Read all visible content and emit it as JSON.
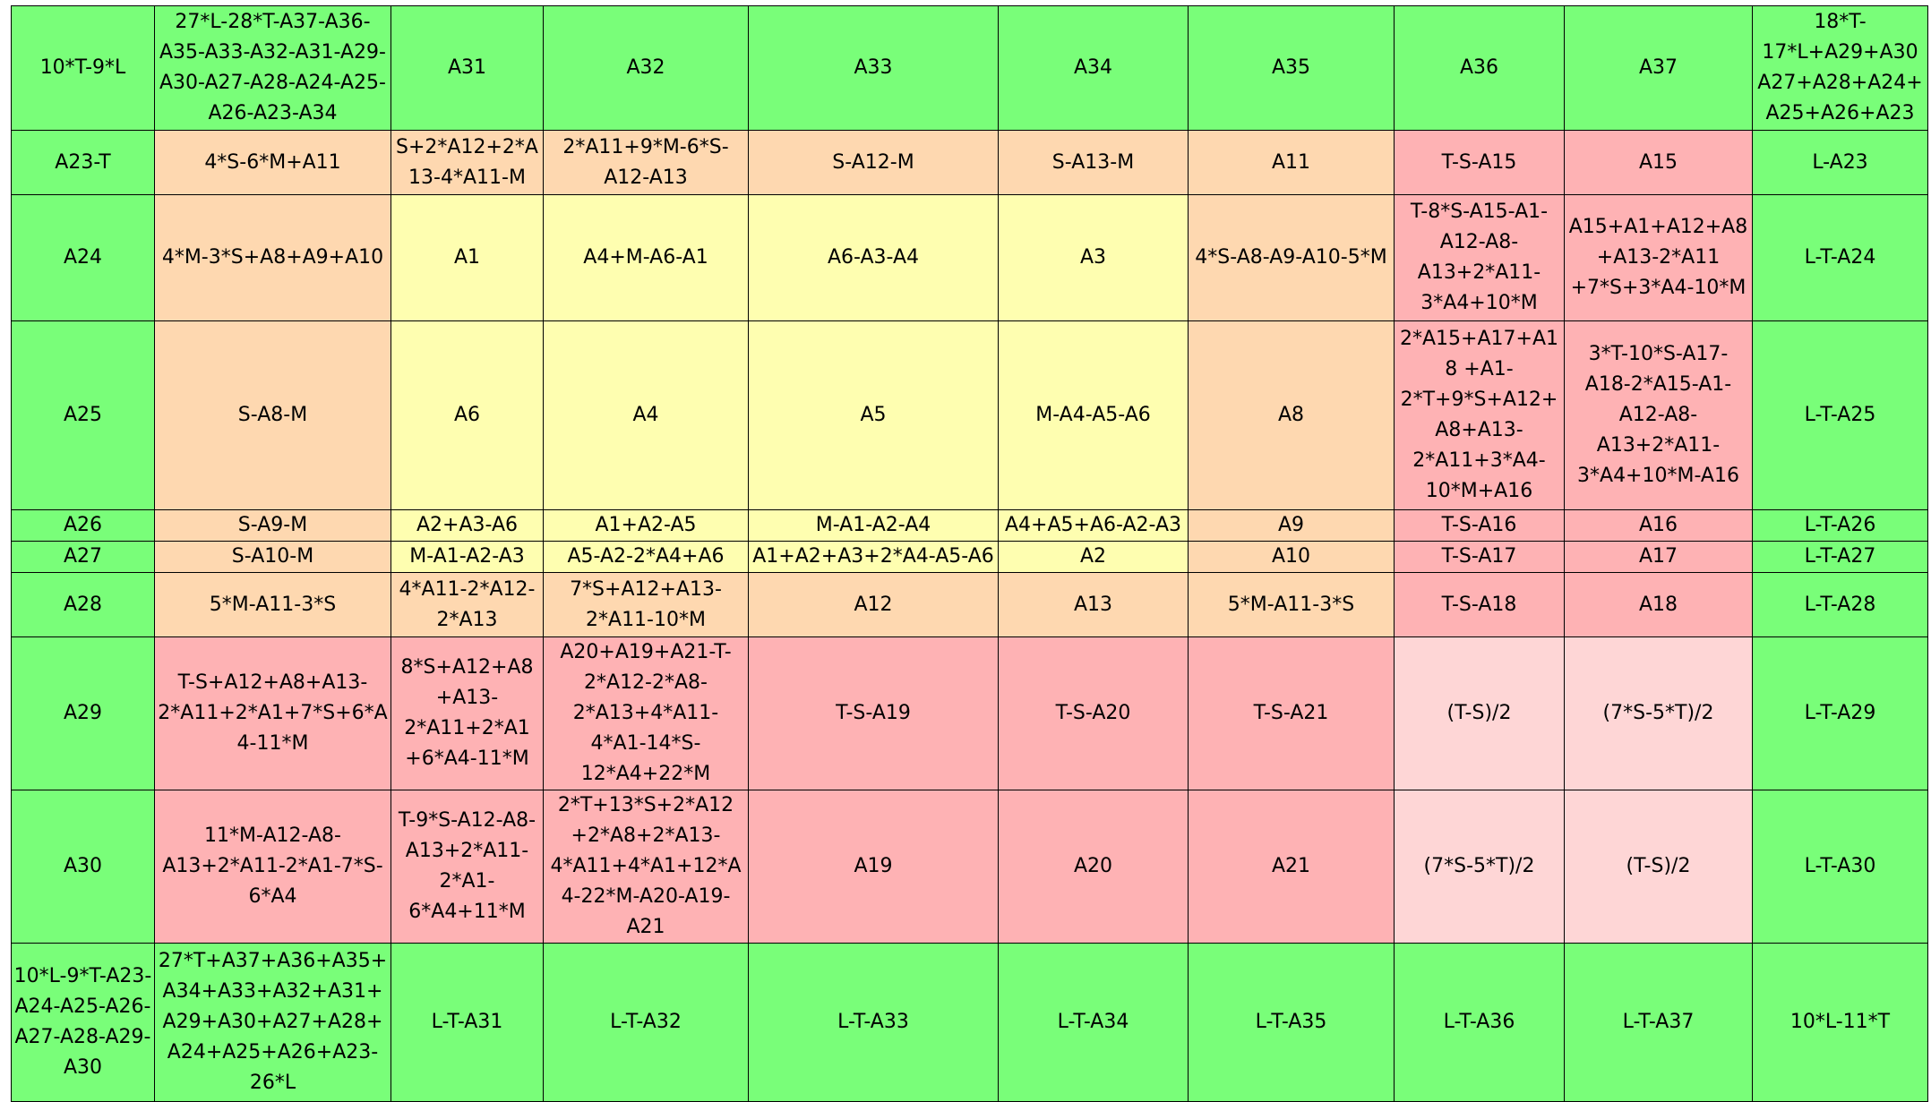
{
  "colors": {
    "green": "#79fe79",
    "orange": "#fed8b0",
    "yellow": "#fefeb0",
    "red": "#feb2b4",
    "pink": "#fed6d6",
    "grid_lines": "#000000"
  },
  "rows": [
    [
      {
        "text": "10*T-9*L",
        "color": "g"
      },
      {
        "text": "27*L-28*T-A37-A36-A35-A33-A32-A31-A29-A30-A27-A28-A24-A25-A26-A23-A34",
        "color": "g"
      },
      {
        "text": "A31",
        "color": "g"
      },
      {
        "text": "A32",
        "color": "g"
      },
      {
        "text": "A33",
        "color": "g"
      },
      {
        "text": "A34",
        "color": "g"
      },
      {
        "text": "A35",
        "color": "g"
      },
      {
        "text": "A36",
        "color": "g"
      },
      {
        "text": "A37",
        "color": "g"
      },
      {
        "text": "18*T-17*L+A29+A30 A27+A28+A24+A25+A26+A23",
        "color": "g"
      }
    ],
    [
      {
        "text": "A23-T",
        "color": "g"
      },
      {
        "text": "4*S-6*M+A11",
        "color": "o"
      },
      {
        "text": "S+2*A12+2*A13-4*A11-M",
        "color": "o"
      },
      {
        "text": "2*A11+9*M-6*S-A12-A13",
        "color": "o"
      },
      {
        "text": "S-A12-M",
        "color": "o"
      },
      {
        "text": "S-A13-M",
        "color": "o"
      },
      {
        "text": "A11",
        "color": "o"
      },
      {
        "text": "T-S-A15",
        "color": "r"
      },
      {
        "text": "A15",
        "color": "r"
      },
      {
        "text": "L-A23",
        "color": "g"
      }
    ],
    [
      {
        "text": "A24",
        "color": "g"
      },
      {
        "text": "4*M-3*S+A8+A9+A10",
        "color": "o"
      },
      {
        "text": "A1",
        "color": "y"
      },
      {
        "text": "A4+M-A6-A1",
        "color": "y"
      },
      {
        "text": "A6-A3-A4",
        "color": "y"
      },
      {
        "text": "A3",
        "color": "y"
      },
      {
        "text": "4*S-A8-A9-A10-5*M",
        "color": "o"
      },
      {
        "text": "T-8*S-A15-A1-A12-A8-A13+2*A11-3*A4+10*M",
        "color": "r"
      },
      {
        "text": "A15+A1+A12+A8+A13-2*A11 +7*S+3*A4-10*M",
        "color": "r"
      },
      {
        "text": "L-T-A24",
        "color": "g"
      }
    ],
    [
      {
        "text": "A25",
        "color": "g"
      },
      {
        "text": "S-A8-M",
        "color": "o"
      },
      {
        "text": "A6",
        "color": "y"
      },
      {
        "text": "A4",
        "color": "y"
      },
      {
        "text": "A5",
        "color": "y"
      },
      {
        "text": "M-A4-A5-A6",
        "color": "y"
      },
      {
        "text": "A8",
        "color": "o"
      },
      {
        "text": "2*A15+A17+A18 +A1-2*T+9*S+A12+A8+A13-2*A11+3*A4-10*M+A16",
        "color": "r"
      },
      {
        "text": "3*T-10*S-A17-A18-2*A15-A1-A12-A8-A13+2*A11-3*A4+10*M-A16",
        "color": "r"
      },
      {
        "text": "L-T-A25",
        "color": "g"
      }
    ],
    [
      {
        "text": "A26",
        "color": "g"
      },
      {
        "text": "S-A9-M",
        "color": "o"
      },
      {
        "text": "A2+A3-A6",
        "color": "y"
      },
      {
        "text": "A1+A2-A5",
        "color": "y"
      },
      {
        "text": "M-A1-A2-A4",
        "color": "y"
      },
      {
        "text": "A4+A5+A6-A2-A3",
        "color": "y"
      },
      {
        "text": "A9",
        "color": "o"
      },
      {
        "text": "T-S-A16",
        "color": "r"
      },
      {
        "text": "A16",
        "color": "r"
      },
      {
        "text": "L-T-A26",
        "color": "g"
      }
    ],
    [
      {
        "text": "A27",
        "color": "g"
      },
      {
        "text": "S-A10-M",
        "color": "o"
      },
      {
        "text": "M-A1-A2-A3",
        "color": "y"
      },
      {
        "text": "A5-A2-2*A4+A6",
        "color": "y"
      },
      {
        "text": "A1+A2+A3+2*A4-A5-A6",
        "color": "y"
      },
      {
        "text": "A2",
        "color": "y"
      },
      {
        "text": "A10",
        "color": "o"
      },
      {
        "text": "T-S-A17",
        "color": "r"
      },
      {
        "text": "A17",
        "color": "r"
      },
      {
        "text": "L-T-A27",
        "color": "g"
      }
    ],
    [
      {
        "text": "A28",
        "color": "g"
      },
      {
        "text": "5*M-A11-3*S",
        "color": "o"
      },
      {
        "text": "4*A11-2*A12-2*A13",
        "color": "o"
      },
      {
        "text": "7*S+A12+A13-2*A11-10*M",
        "color": "o"
      },
      {
        "text": "A12",
        "color": "o"
      },
      {
        "text": "A13",
        "color": "o"
      },
      {
        "text": "5*M-A11-3*S",
        "color": "o"
      },
      {
        "text": "T-S-A18",
        "color": "r"
      },
      {
        "text": "A18",
        "color": "r"
      },
      {
        "text": "L-T-A28",
        "color": "g"
      }
    ],
    [
      {
        "text": "A29",
        "color": "g"
      },
      {
        "text": "T-S+A12+A8+A13-2*A11+2*A1+7*S+6*A4-11*M",
        "color": "r"
      },
      {
        "text": "8*S+A12+A8+A13-2*A11+2*A1 +6*A4-11*M",
        "color": "r"
      },
      {
        "text": "A20+A19+A21-T-2*A12-2*A8-2*A13+4*A11-4*A1-14*S-12*A4+22*M",
        "color": "r"
      },
      {
        "text": "T-S-A19",
        "color": "r"
      },
      {
        "text": "T-S-A20",
        "color": "r"
      },
      {
        "text": "T-S-A21",
        "color": "r"
      },
      {
        "text": "(T-S)/2",
        "color": "p"
      },
      {
        "text": "(7*S-5*T)/2",
        "color": "p"
      },
      {
        "text": "L-T-A29",
        "color": "g"
      }
    ],
    [
      {
        "text": "A30",
        "color": "g"
      },
      {
        "text": "11*M-A12-A8-A13+2*A11-2*A1-7*S-6*A4",
        "color": "r"
      },
      {
        "text": "T-9*S-A12-A8-A13+2*A11-2*A1-6*A4+11*M",
        "color": "r"
      },
      {
        "text": "2*T+13*S+2*A12 +2*A8+2*A13-4*A11+4*A1+12*A4-22*M-A20-A19-A21",
        "color": "r"
      },
      {
        "text": "A19",
        "color": "r"
      },
      {
        "text": "A20",
        "color": "r"
      },
      {
        "text": "A21",
        "color": "r"
      },
      {
        "text": "(7*S-5*T)/2",
        "color": "p"
      },
      {
        "text": "(T-S)/2",
        "color": "p"
      },
      {
        "text": "L-T-A30",
        "color": "g"
      }
    ],
    [
      {
        "text": "10*L-9*T-A23-A24-A25-A26-A27-A28-A29-A30",
        "color": "g"
      },
      {
        "text": "27*T+A37+A36+A35+A34+A33+A32+A31+A29+A30+A27+A28+A24+A25+A26+A23-26*L",
        "color": "g"
      },
      {
        "text": "L-T-A31",
        "color": "g"
      },
      {
        "text": "L-T-A32",
        "color": "g"
      },
      {
        "text": "L-T-A33",
        "color": "g"
      },
      {
        "text": "L-T-A34",
        "color": "g"
      },
      {
        "text": "L-T-A35",
        "color": "g"
      },
      {
        "text": "L-T-A36",
        "color": "g"
      },
      {
        "text": "L-T-A37",
        "color": "g"
      },
      {
        "text": "10*L-11*T",
        "color": "g"
      }
    ]
  ]
}
